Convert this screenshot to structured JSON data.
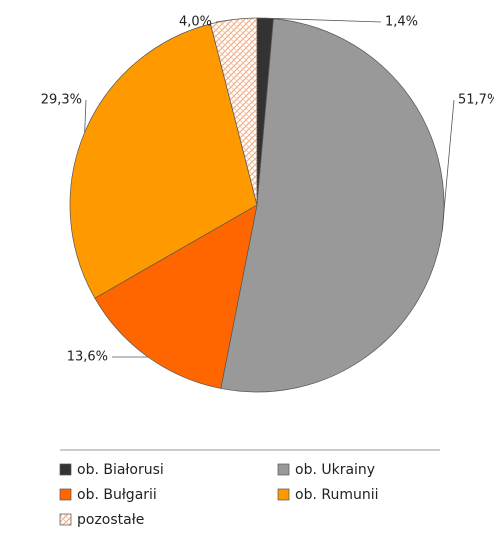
{
  "chart_data": {
    "type": "pie",
    "categories": [
      "ob. Białorusi",
      "ob. Ukrainy",
      "ob. Bułgarii",
      "ob. Rumunii",
      "pozostałe"
    ],
    "values": [
      1.4,
      51.7,
      13.6,
      29.3,
      4.0
    ],
    "value_labels": [
      "1,4%",
      "51,7%",
      "13,6%",
      "29,3%",
      "4,0%"
    ],
    "colors": [
      "#333333",
      "#999999",
      "#ff6600",
      "#ff9900",
      "url(#hatch)"
    ],
    "legend": "bottom"
  }
}
